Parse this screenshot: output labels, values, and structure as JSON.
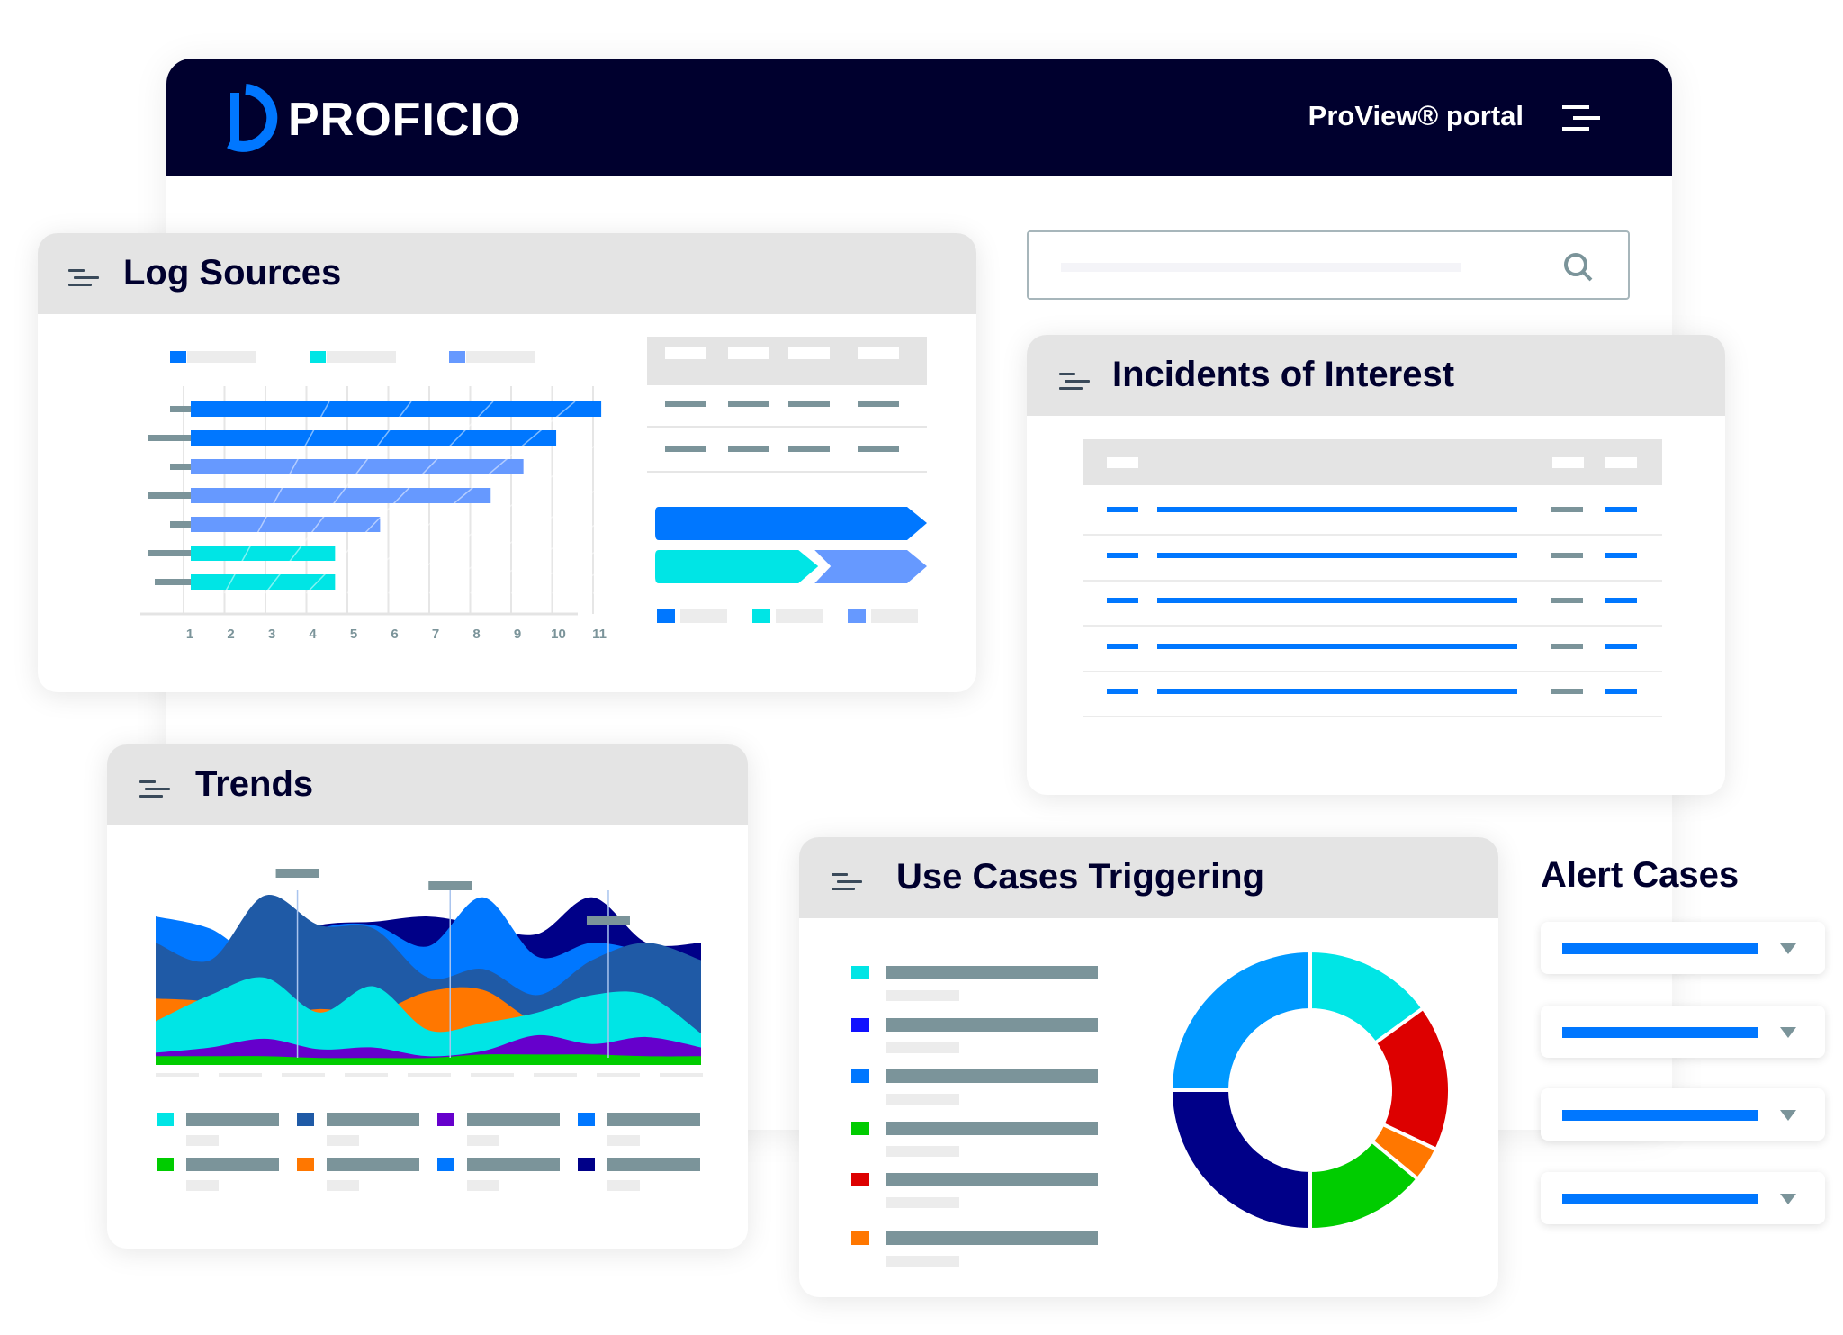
{
  "header": {
    "brand": "PROFICIO",
    "portal_label": "ProView® portal",
    "logo_icon": "proficio-logo-icon",
    "menu_icon": "menu-icon",
    "bg_color": "#00002e"
  },
  "search": {
    "placeholder": "",
    "icon": "search-icon"
  },
  "log_sources": {
    "title": "Log Sources",
    "chart_data": {
      "type": "bar",
      "orientation": "horizontal",
      "x_ticks": [
        "1",
        "2",
        "3",
        "4",
        "5",
        "6",
        "7",
        "8",
        "9",
        "10",
        "11"
      ],
      "xlim": [
        1,
        11
      ],
      "grid": true,
      "values": [
        11.2,
        10.1,
        9.3,
        8.5,
        5.8,
        4.7,
        4.7
      ],
      "colors": [
        "#0077ff",
        "#0077ff",
        "#6699ff",
        "#6699ff",
        "#6699ff",
        "#00e5e5",
        "#00e5e5"
      ],
      "legend_colors": [
        "#0077ff",
        "#00e5e5",
        "#6699ff"
      ]
    },
    "progress": {
      "full_color": "#0077ff",
      "split": [
        {
          "color": "#00e5e5",
          "fraction": 0.6
        },
        {
          "color": "#6699ff",
          "fraction": 0.4
        }
      ]
    }
  },
  "incidents": {
    "title": "Incidents of Interest",
    "row_count": 5,
    "accent": "#0077ff"
  },
  "trends": {
    "title": "Trends",
    "chart_data": {
      "type": "area",
      "x": [
        0,
        1,
        2,
        3,
        4,
        5,
        6,
        7,
        8,
        9,
        10
      ],
      "ylim": [
        0,
        100
      ],
      "grid": false,
      "series": [
        {
          "color": "#000088",
          "values": [
            85,
            72,
            68,
            80,
            82,
            85,
            80,
            75,
            96,
            70,
            70
          ]
        },
        {
          "color": "#0077ff",
          "values": [
            85,
            78,
            60,
            78,
            80,
            68,
            96,
            62,
            70,
            65,
            60
          ]
        },
        {
          "color": "#1f5aa6",
          "values": [
            70,
            60,
            97,
            80,
            78,
            50,
            55,
            40,
            60,
            70,
            60
          ]
        },
        {
          "color": "#ff7700",
          "values": [
            38,
            36,
            28,
            32,
            30,
            42,
            43,
            25,
            30,
            22,
            18
          ]
        },
        {
          "color": "#00e5e5",
          "values": [
            25,
            40,
            50,
            30,
            45,
            20,
            24,
            30,
            40,
            40,
            18
          ]
        },
        {
          "color": "#6600cc",
          "values": [
            7,
            10,
            15,
            9,
            10,
            5,
            8,
            17,
            12,
            16,
            10
          ]
        },
        {
          "color": "#00cc00",
          "values": [
            5,
            5,
            5,
            4,
            4,
            4,
            6,
            6,
            6,
            5,
            5
          ]
        }
      ],
      "marker_x": [
        2.6,
        5.4,
        8.3
      ],
      "legend_colors": [
        "#00e5e5",
        "#1f5aa6",
        "#6600cc",
        "#0077ff",
        "#00cc00",
        "#ff7700",
        "#0077ff",
        "#000088"
      ]
    }
  },
  "use_cases": {
    "title": "Use Cases Triggering",
    "legend_colors": [
      "#00e5e5",
      "#1111ff",
      "#0077ff",
      "#00cc00",
      "#dd0000",
      "#ff7700"
    ],
    "chart_data": {
      "type": "pie",
      "donut": true,
      "values": [
        15,
        17,
        4,
        14,
        25,
        25
      ],
      "colors": [
        "#00e5e5",
        "#dd0000",
        "#ff7700",
        "#00cc00",
        "#000088",
        "#0099ff"
      ]
    }
  },
  "alert_cases": {
    "title": "Alert Cases",
    "dropdown_count": 4,
    "chevron_icon": "chevron-down-icon"
  }
}
